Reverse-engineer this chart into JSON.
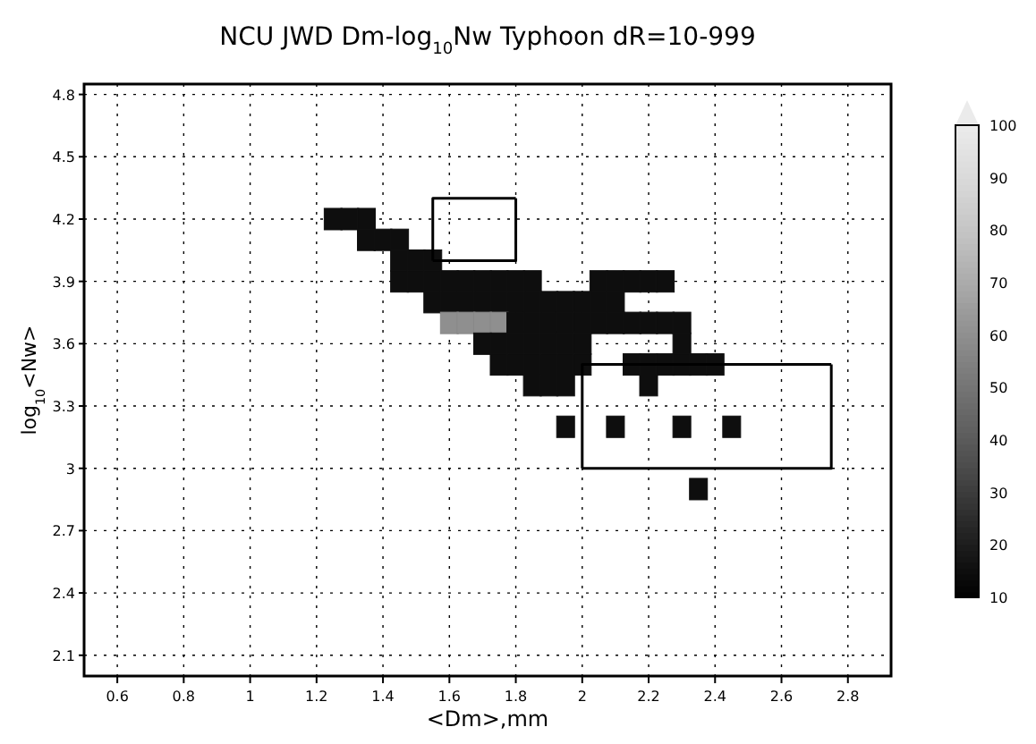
{
  "chart_data": {
    "type": "scatter",
    "title": "NCU JWD Dm-log$_{10}$Nw Typhoon dR=10-999",
    "xlabel": "<Dm>,mm",
    "ylabel": "log$_{10}$<Nw>",
    "xlim": [
      0.5,
      2.93
    ],
    "ylim": [
      2.0,
      4.85
    ],
    "xticks": [
      0.6,
      0.8,
      1,
      1.2,
      1.4,
      1.6,
      1.8,
      2,
      2.2,
      2.4,
      2.6,
      2.8
    ],
    "yticks": [
      2.1,
      2.4,
      2.7,
      3,
      3.3,
      3.6,
      3.9,
      4.2,
      4.5,
      4.8
    ],
    "grid": true,
    "clim": [
      10,
      100
    ],
    "cticks": [
      10,
      20,
      30,
      40,
      50,
      60,
      70,
      80,
      90,
      100
    ],
    "series": [
      {
        "marker": "square",
        "colors": [
          "#111111",
          "#111111",
          "#111111",
          "#111111",
          "#111111",
          "#111111",
          "#111111",
          "#111111",
          "#111111",
          "#111111",
          "#111111",
          "#111111",
          "#111111",
          "#111111",
          "#111111",
          "#111111",
          "#111111",
          "#111111",
          "#111111",
          "#111111",
          "#111111",
          "#111111",
          "#111111",
          "#111111",
          "#111111",
          "#111111",
          "#111111",
          "#111111",
          "#111111",
          "#111111",
          "#111111",
          "#111111",
          "#111111",
          "#111111",
          "#111111",
          "#888888",
          "#888888",
          "#888888",
          "#888888",
          "#111111",
          "#111111",
          "#111111",
          "#111111",
          "#111111",
          "#111111",
          "#111111",
          "#111111",
          "#111111",
          "#111111",
          "#111111",
          "#111111",
          "#111111",
          "#111111",
          "#111111",
          "#111111",
          "#111111",
          "#111111",
          "#111111",
          "#111111",
          "#111111",
          "#111111",
          "#111111",
          "#111111",
          "#111111",
          "#111111",
          "#111111",
          "#111111",
          "#111111",
          "#111111",
          "#111111",
          "#111111",
          "#111111",
          "#111111",
          "#111111",
          "#111111",
          "#111111",
          "#111111",
          "#111111",
          "#111111"
        ],
        "x": [
          1.25,
          1.3,
          1.35,
          1.35,
          1.4,
          1.45,
          1.45,
          1.5,
          1.55,
          1.45,
          1.5,
          1.55,
          1.6,
          1.65,
          1.7,
          1.75,
          1.8,
          1.85,
          2.05,
          2.1,
          2.15,
          2.2,
          2.25,
          1.55,
          1.6,
          1.65,
          1.7,
          1.75,
          1.8,
          1.85,
          1.9,
          1.95,
          2.0,
          2.05,
          2.1,
          1.6,
          1.65,
          1.7,
          1.75,
          1.8,
          1.85,
          1.9,
          1.95,
          2.0,
          2.05,
          2.1,
          2.15,
          2.2,
          2.25,
          2.3,
          1.7,
          1.75,
          1.8,
          1.85,
          1.9,
          1.95,
          2.0,
          2.3,
          1.75,
          1.8,
          1.85,
          1.9,
          1.95,
          2.0,
          2.15,
          2.2,
          2.25,
          2.3,
          2.35,
          2.4,
          1.85,
          1.9,
          1.95,
          2.2,
          1.95,
          2.1,
          2.3,
          2.45,
          2.35
        ],
        "values": [
          4.2,
          4.2,
          4.2,
          4.1,
          4.1,
          4.1,
          4.0,
          4.0,
          4.0,
          3.9,
          3.9,
          3.9,
          3.9,
          3.9,
          3.9,
          3.9,
          3.9,
          3.9,
          3.9,
          3.9,
          3.9,
          3.9,
          3.9,
          3.8,
          3.8,
          3.8,
          3.8,
          3.8,
          3.8,
          3.8,
          3.8,
          3.8,
          3.8,
          3.8,
          3.8,
          3.7,
          3.7,
          3.7,
          3.7,
          3.7,
          3.7,
          3.7,
          3.7,
          3.7,
          3.7,
          3.7,
          3.7,
          3.7,
          3.7,
          3.7,
          3.6,
          3.6,
          3.6,
          3.6,
          3.6,
          3.6,
          3.6,
          3.6,
          3.5,
          3.5,
          3.5,
          3.5,
          3.5,
          3.5,
          3.5,
          3.5,
          3.5,
          3.5,
          3.5,
          3.5,
          3.4,
          3.4,
          3.4,
          3.4,
          3.2,
          3.2,
          3.2,
          3.2,
          2.9
        ],
        "cvalues": [
          15,
          15,
          15,
          15,
          15,
          15,
          15,
          15,
          15,
          15,
          15,
          15,
          15,
          15,
          15,
          15,
          15,
          15,
          15,
          15,
          15,
          15,
          15,
          15,
          15,
          15,
          15,
          15,
          15,
          15,
          15,
          15,
          15,
          15,
          15,
          60,
          60,
          60,
          60,
          15,
          15,
          15,
          15,
          15,
          15,
          15,
          15,
          15,
          15,
          15,
          15,
          15,
          15,
          15,
          15,
          15,
          15,
          15,
          15,
          15,
          15,
          15,
          15,
          15,
          15,
          15,
          15,
          15,
          15,
          15,
          15,
          15,
          15,
          15,
          15,
          15,
          15,
          15,
          15
        ]
      },
      {
        "type": "line",
        "marker": "none",
        "color": "#000000",
        "x": [
          1.55,
          1.55,
          1.8
        ],
        "values": [
          4.0,
          4.3,
          4.3
        ]
      },
      {
        "type": "line",
        "marker": "none",
        "color": "#000000",
        "x": [
          1.55,
          1.8,
          1.8
        ],
        "values": [
          4.0,
          4.0,
          4.3
        ]
      },
      {
        "type": "line",
        "marker": "none",
        "color": "#000000",
        "x": [
          2.0,
          2.0,
          2.75
        ],
        "values": [
          3.0,
          3.5,
          3.5
        ]
      },
      {
        "type": "line",
        "marker": "none",
        "color": "#000000",
        "x": [
          2.0,
          2.75,
          2.75
        ],
        "values": [
          3.0,
          3.0,
          3.5
        ]
      }
    ]
  }
}
